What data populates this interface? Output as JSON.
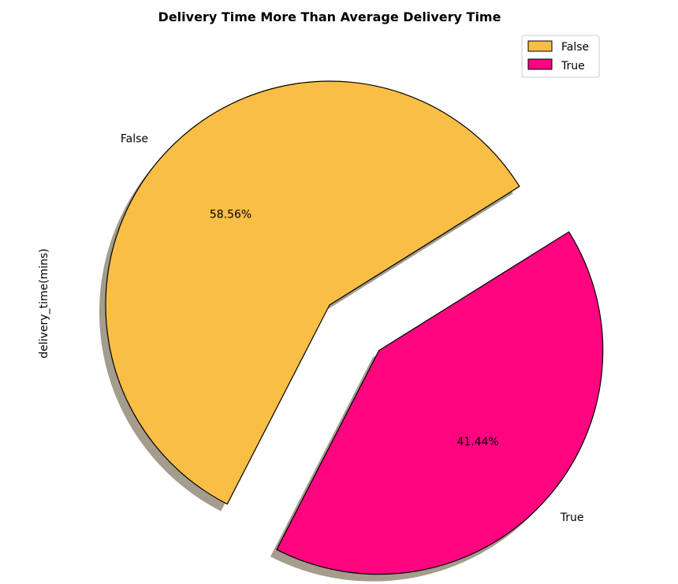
{
  "chart_data": {
    "type": "pie",
    "title": "Delivery Time More Than Average Delivery Time",
    "ylabel": "delivery_time(mins)",
    "categories": [
      "False",
      "True"
    ],
    "values": [
      58.56,
      41.44
    ],
    "autopct_labels": [
      "58.56%",
      "41.44%"
    ],
    "colors": [
      "#F9BE45",
      "#FF0580"
    ],
    "shadow": true,
    "explode": [
      0,
      0.3
    ],
    "legend": {
      "entries": [
        "False",
        "True"
      ],
      "placement": "top-right"
    }
  }
}
